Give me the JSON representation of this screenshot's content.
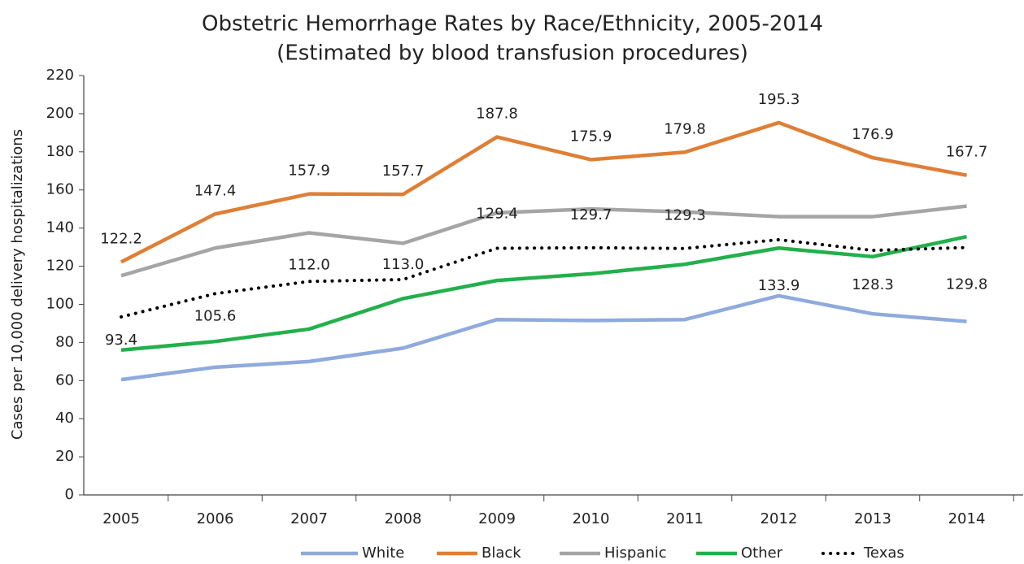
{
  "chart_data": {
    "type": "line",
    "title": "Obstetric Hemorrhage Rates by Race/Ethnicity, 2005-2014",
    "subtitle": "(Estimated by blood transfusion procedures)",
    "y_label": "Cases per 10,000 delivery hospitalizations",
    "categories": [
      "2005",
      "2006",
      "2007",
      "2008",
      "2009",
      "2010",
      "2011",
      "2012",
      "2013",
      "2014"
    ],
    "ylim": [
      0,
      220
    ],
    "yticks": [
      0,
      20,
      40,
      60,
      80,
      100,
      120,
      140,
      160,
      180,
      200,
      220
    ],
    "grid": false,
    "legend": "bottom",
    "series": [
      {
        "name": "White",
        "color": "#8faadc",
        "values": [
          60.5,
          67,
          70,
          77,
          92,
          91.5,
          92,
          104.5,
          95,
          91
        ]
      },
      {
        "name": "Black",
        "color": "#df7f35",
        "values": [
          122.2,
          147.4,
          157.9,
          157.7,
          187.8,
          175.9,
          179.8,
          195.3,
          176.9,
          167.7
        ],
        "labels": true
      },
      {
        "name": "Hispanic",
        "color": "#a5a5a5",
        "values": [
          115,
          129.5,
          137.5,
          132,
          148,
          150,
          148.5,
          146,
          146,
          151.5
        ]
      },
      {
        "name": "Other",
        "color": "#22b04b",
        "values": [
          76,
          80.5,
          87,
          103,
          112.5,
          116,
          121,
          129.5,
          125,
          135.5
        ]
      },
      {
        "name": "Texas",
        "color": "#000000",
        "dash": "dot",
        "values": [
          93.4,
          105.6,
          112.0,
          113.0,
          129.4,
          129.7,
          129.3,
          133.9,
          128.3,
          129.8
        ],
        "value_labels": [
          "93.4",
          "105.6",
          "112.0",
          "113.0",
          "129.4",
          "129.7",
          "129.3",
          "133.9",
          "128.3",
          "129.8"
        ],
        "labels": true
      }
    ]
  }
}
